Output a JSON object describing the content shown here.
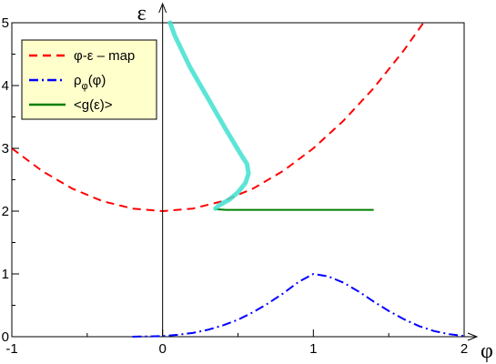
{
  "chart_data": {
    "type": "line",
    "xlabel": "φ",
    "ylabel": "ε",
    "xlim": [
      -1,
      2
    ],
    "ylim": [
      0,
      5
    ],
    "x_ticks": [
      "-1",
      "0",
      "1",
      "2"
    ],
    "y_ticks": [
      "0",
      "1",
      "2",
      "3",
      "4",
      "5"
    ],
    "grid": false,
    "legend_placement": "top-left",
    "legend": {
      "background": "#ffffcc",
      "entries": [
        {
          "label": "φ-ε –  map",
          "color": "#ff0000",
          "dash": "dashed"
        },
        {
          "label": "ρ",
          "sub": "φ",
          "tail": "(φ)",
          "color": "#0000ff",
          "dash": "dash-dot"
        },
        {
          "label": "<g(ε)>",
          "color": "#008000",
          "dash": "solid"
        }
      ]
    },
    "series": [
      {
        "name": "φ-ε –  map",
        "color": "#ff0000",
        "x": [
          -1.0,
          -0.8,
          -0.6,
          -0.4,
          -0.2,
          0.0,
          0.2,
          0.4,
          0.6,
          0.8,
          1.0,
          1.2,
          1.4,
          1.6,
          1.73
        ],
        "y": [
          3.0,
          2.64,
          2.36,
          2.16,
          2.04,
          2.0,
          2.04,
          2.16,
          2.36,
          2.64,
          3.0,
          3.44,
          3.96,
          4.56,
          5.0
        ]
      },
      {
        "name": "ρφ(φ)",
        "color": "#0000ff",
        "x": [
          -0.2,
          0.0,
          0.1,
          0.2,
          0.3,
          0.4,
          0.5,
          0.6,
          0.7,
          0.8,
          0.9,
          1.0,
          1.1,
          1.2,
          1.3,
          1.4,
          1.5,
          1.6,
          1.7,
          1.8,
          1.9,
          2.0
        ],
        "y": [
          0.0,
          0.01,
          0.03,
          0.06,
          0.11,
          0.18,
          0.27,
          0.39,
          0.53,
          0.69,
          0.87,
          1.0,
          0.96,
          0.86,
          0.72,
          0.56,
          0.41,
          0.28,
          0.17,
          0.09,
          0.04,
          0.01
        ]
      },
      {
        "name": "<g(ε)>",
        "color": "#008000",
        "x": [
          0.35,
          0.42,
          0.6,
          0.8,
          1.0,
          1.2,
          1.4
        ],
        "y": [
          2.03,
          2.02,
          2.02,
          2.02,
          2.02,
          2.02,
          2.02
        ]
      },
      {
        "name": "",
        "color": "#40e0d0",
        "x": [
          0.05,
          0.08,
          0.13,
          0.18,
          0.24,
          0.3,
          0.36,
          0.42,
          0.47,
          0.52,
          0.56,
          0.57,
          0.55,
          0.5,
          0.44,
          0.38,
          0.35
        ],
        "y": [
          5.0,
          4.8,
          4.55,
          4.3,
          4.05,
          3.8,
          3.55,
          3.3,
          3.1,
          2.9,
          2.75,
          2.6,
          2.45,
          2.3,
          2.18,
          2.1,
          2.04
        ]
      }
    ]
  }
}
